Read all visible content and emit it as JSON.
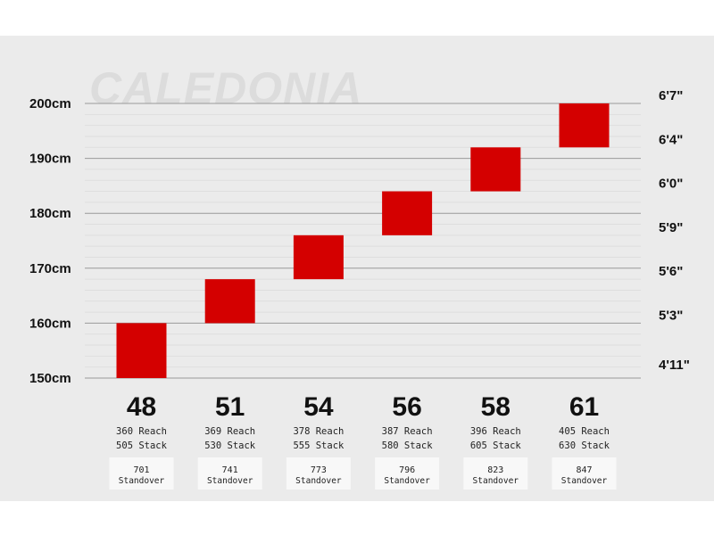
{
  "brand_watermark": "CALEDONIA",
  "chart_data": {
    "type": "bar",
    "ylim": [
      150,
      200
    ],
    "y_unit": "cm",
    "left_ticks": [
      {
        "value": 200,
        "label": "200cm"
      },
      {
        "value": 190,
        "label": "190cm"
      },
      {
        "value": 180,
        "label": "180cm"
      },
      {
        "value": 170,
        "label": "170cm"
      },
      {
        "value": 160,
        "label": "160cm"
      },
      {
        "value": 150,
        "label": "150cm"
      }
    ],
    "right_ticks": [
      {
        "value": 200,
        "label": "6'7\""
      },
      {
        "value": 192,
        "label": "6'4\""
      },
      {
        "value": 184,
        "label": "6'0\""
      },
      {
        "value": 176,
        "label": "5'9\""
      },
      {
        "value": 168,
        "label": "5'6\""
      },
      {
        "value": 160,
        "label": "5'3\""
      },
      {
        "value": 151,
        "label": "4'11\""
      }
    ],
    "categories": [
      "48",
      "51",
      "54",
      "56",
      "58",
      "61"
    ],
    "bars": [
      {
        "size": "48",
        "low": 150,
        "high": 160,
        "reach": "360 Reach",
        "stack": "505 Stack",
        "standover": "701",
        "standover_label": "Standover"
      },
      {
        "size": "51",
        "low": 160,
        "high": 168,
        "reach": "369 Reach",
        "stack": "530 Stack",
        "standover": "741",
        "standover_label": "Standover"
      },
      {
        "size": "54",
        "low": 168,
        "high": 176,
        "reach": "378 Reach",
        "stack": "555 Stack",
        "standover": "773",
        "standover_label": "Standover"
      },
      {
        "size": "56",
        "low": 176,
        "high": 184,
        "reach": "387 Reach",
        "stack": "580 Stack",
        "standover": "796",
        "standover_label": "Standover"
      },
      {
        "size": "58",
        "low": 184,
        "high": 192,
        "reach": "396 Reach",
        "stack": "605 Stack",
        "standover": "823",
        "standover_label": "Standover"
      },
      {
        "size": "61",
        "low": 192,
        "high": 200,
        "reach": "405 Reach",
        "stack": "630 Stack",
        "standover": "847",
        "standover_label": "Standover"
      }
    ],
    "bar_color": "#d40000",
    "grid": true
  }
}
